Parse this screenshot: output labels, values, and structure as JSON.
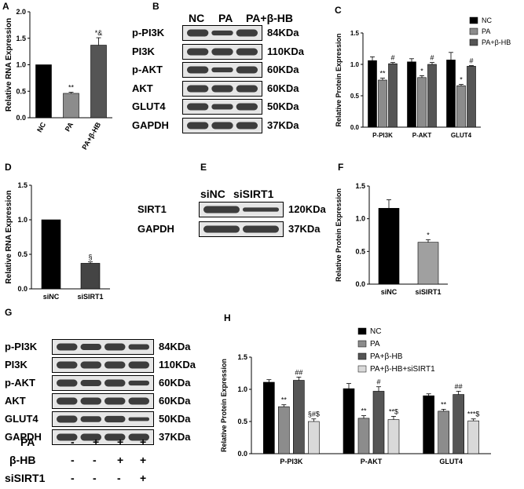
{
  "panels": {
    "A": {
      "label": "A",
      "chart_data": {
        "type": "bar",
        "ylabel": "Relative RNA Expression",
        "ylim": [
          0,
          2.0
        ],
        "yticks": [
          "0.0",
          "0.5",
          "1.0",
          "1.5",
          "2.0"
        ],
        "categories": [
          "NC",
          "PA",
          "PA+β-HB"
        ],
        "values": [
          1.0,
          0.46,
          1.37
        ],
        "errors": [
          0,
          0.02,
          0.14
        ],
        "annotations": [
          "",
          "**",
          "*&"
        ],
        "colors": [
          "#000000",
          "#8c8c8c",
          "#555555"
        ]
      }
    },
    "B": {
      "label": "B",
      "columns": [
        "NC",
        "PA",
        "PA+β-HB"
      ],
      "rows": [
        {
          "protein": "p-PI3K",
          "kda": "84KDa"
        },
        {
          "protein": "PI3K",
          "kda": "110KDa"
        },
        {
          "protein": "p-AKT",
          "kda": "60KDa"
        },
        {
          "protein": "AKT",
          "kda": "60KDa"
        },
        {
          "protein": "GLUT4",
          "kda": "50KDa"
        },
        {
          "protein": "GAPDH",
          "kda": "37KDa"
        }
      ]
    },
    "C": {
      "label": "C",
      "chart_data": {
        "type": "bar",
        "ylabel": "Relative Protein Expression",
        "ylim": [
          0,
          1.5
        ],
        "yticks": [
          "0.0",
          "0.5",
          "1.0",
          "1.5"
        ],
        "categories": [
          "P-PI3K",
          "P-AKT",
          "GLUT4"
        ],
        "series": [
          {
            "name": "NC",
            "values": [
              1.06,
              1.04,
              1.07
            ],
            "errors": [
              0.06,
              0.05,
              0.12
            ],
            "annotations": [
              "",
              "",
              ""
            ],
            "color": "#000000"
          },
          {
            "name": "PA",
            "values": [
              0.75,
              0.79,
              0.66
            ],
            "errors": [
              0.03,
              0.03,
              0.02
            ],
            "annotations": [
              "**",
              "*",
              "*"
            ],
            "color": "#8c8c8c"
          },
          {
            "name": "PA+β-HB",
            "values": [
              1.01,
              1.0,
              0.97
            ],
            "errors": [
              0.02,
              0.03,
              0.01
            ],
            "annotations": [
              "#",
              "#",
              "#"
            ],
            "color": "#555555"
          }
        ]
      }
    },
    "D": {
      "label": "D",
      "chart_data": {
        "type": "bar",
        "ylabel": "Relative RNA Expression",
        "ylim": [
          0,
          1.5
        ],
        "yticks": [
          "0.0",
          "0.5",
          "1.0",
          "1.5"
        ],
        "categories": [
          "siNC",
          "siSIRT1"
        ],
        "values": [
          1.0,
          0.37
        ],
        "errors": [
          0,
          0.02
        ],
        "annotations": [
          "",
          "§"
        ],
        "colors": [
          "#000000",
          "#444444"
        ]
      }
    },
    "E": {
      "label": "E",
      "columns": [
        "siNC",
        "siSIRT1"
      ],
      "rows": [
        {
          "protein": "SIRT1",
          "kda": "120KDa"
        },
        {
          "protein": "GAPDH",
          "kda": "37KDa"
        }
      ]
    },
    "F": {
      "label": "F",
      "chart_data": {
        "type": "bar",
        "ylabel": "Relative Protein Expression",
        "ylim": [
          0,
          1.5
        ],
        "yticks": [
          "0.0",
          "0.5",
          "1.0",
          "1.5"
        ],
        "categories": [
          "siNC",
          "siSIRT1"
        ],
        "values": [
          1.16,
          0.64
        ],
        "errors": [
          0.13,
          0.04
        ],
        "annotations": [
          "",
          "*"
        ],
        "colors": [
          "#000000",
          "#a0a0a0"
        ]
      }
    },
    "G": {
      "label": "G",
      "rows": [
        {
          "protein": "p-PI3K",
          "kda": "84KDa"
        },
        {
          "protein": "PI3K",
          "kda": "110KDa"
        },
        {
          "protein": "p-AKT",
          "kda": "60KDa"
        },
        {
          "protein": "AKT",
          "kda": "60KDa"
        },
        {
          "protein": "GLUT4",
          "kda": "50KDa"
        },
        {
          "protein": "GAPDH",
          "kda": "37KDa"
        }
      ],
      "conditions": [
        {
          "name": "PA",
          "marks": [
            "-",
            "+",
            "+",
            "+"
          ]
        },
        {
          "name": "β-HB",
          "marks": [
            "-",
            "-",
            "+",
            "+"
          ]
        },
        {
          "name": "siSIRT1",
          "marks": [
            "-",
            "-",
            "-",
            "+"
          ]
        }
      ]
    },
    "H": {
      "label": "H",
      "chart_data": {
        "type": "bar",
        "ylabel": "Relative Protein Expression",
        "ylim": [
          0,
          1.5
        ],
        "yticks": [
          "0.0",
          "0.5",
          "1.0",
          "1.5"
        ],
        "categories": [
          "P-PI3K",
          "P-AKT",
          "GLUT4"
        ],
        "series": [
          {
            "name": "NC",
            "values": [
              1.11,
              1.01,
              0.9
            ],
            "errors": [
              0.04,
              0.08,
              0.03
            ],
            "annotations": [
              "",
              "",
              ""
            ],
            "color": "#000000"
          },
          {
            "name": "PA",
            "values": [
              0.73,
              0.55,
              0.66
            ],
            "errors": [
              0.03,
              0.04,
              0.03
            ],
            "annotations": [
              "**",
              "**",
              "**"
            ],
            "color": "#8c8c8c"
          },
          {
            "name": "PA+β-HB",
            "values": [
              1.14,
              0.97,
              0.92
            ],
            "errors": [
              0.05,
              0.07,
              0.05
            ],
            "annotations": [
              "##",
              "#",
              "##"
            ],
            "color": "#555555"
          },
          {
            "name": "PA+β-HB+siSIRT1",
            "values": [
              0.5,
              0.53,
              0.51
            ],
            "errors": [
              0.04,
              0.05,
              0.03
            ],
            "annotations": [
              "§#$",
              "**$",
              "***$"
            ],
            "color": "#d9d9d9"
          }
        ]
      }
    }
  }
}
